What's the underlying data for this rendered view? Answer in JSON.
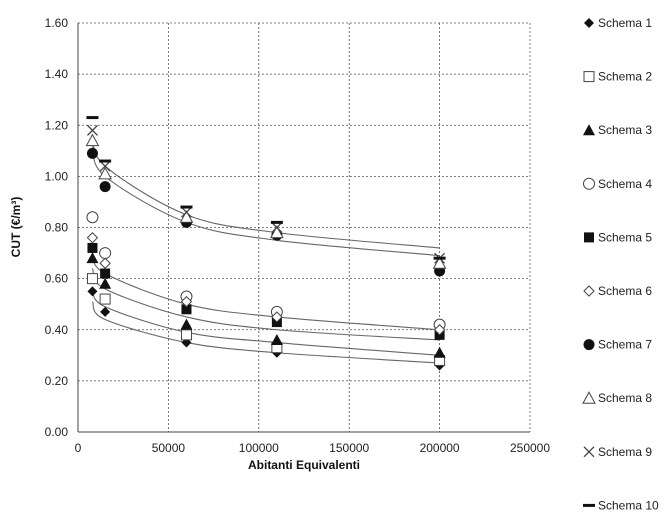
{
  "chart_data": {
    "type": "scatter",
    "xlabel": "Abitanti Equivalenti",
    "ylabel": "CUT (€/m³)",
    "xlim": [
      0,
      250000
    ],
    "ylim": [
      0,
      1.6
    ],
    "x_ticks": [
      "0",
      "50000",
      "100000",
      "150000",
      "200000",
      "250000"
    ],
    "y_ticks": [
      "0.00",
      "0.20",
      "0.40",
      "0.60",
      "0.80",
      "1.00",
      "1.20",
      "1.40",
      "1.60"
    ],
    "grid": "dashed",
    "legend_position": "right",
    "x": [
      8000,
      15000,
      60000,
      110000,
      200000
    ],
    "series": [
      {
        "name": "Schema 1",
        "marker": "diamond-filled",
        "values": [
          0.55,
          0.47,
          0.35,
          0.31,
          0.26
        ]
      },
      {
        "name": "Schema 2",
        "marker": "square-open",
        "values": [
          0.6,
          0.52,
          0.38,
          0.33,
          0.28
        ]
      },
      {
        "name": "Schema 3",
        "marker": "triangle-filled",
        "values": [
          0.68,
          0.58,
          0.42,
          0.36,
          0.31
        ]
      },
      {
        "name": "Schema 4",
        "marker": "circle-open",
        "values": [
          0.84,
          0.7,
          0.53,
          0.47,
          0.42
        ]
      },
      {
        "name": "Schema 5",
        "marker": "square-filled",
        "values": [
          0.72,
          0.62,
          0.48,
          0.43,
          0.38
        ]
      },
      {
        "name": "Schema 6",
        "marker": "diamond-open",
        "values": [
          0.76,
          0.66,
          0.51,
          0.45,
          0.4
        ]
      },
      {
        "name": "Schema 7",
        "marker": "circle-filled",
        "values": [
          1.09,
          0.96,
          0.82,
          0.77,
          0.63
        ]
      },
      {
        "name": "Schema 8",
        "marker": "triangle-open",
        "values": [
          1.14,
          1.01,
          0.84,
          0.78,
          0.66
        ]
      },
      {
        "name": "Schema 9",
        "marker": "x",
        "values": [
          1.18,
          1.04,
          0.86,
          0.8,
          0.68
        ]
      },
      {
        "name": "Schema 10",
        "marker": "dash",
        "values": [
          1.23,
          1.06,
          0.88,
          0.82,
          0.68
        ]
      }
    ],
    "trend_lines": [
      {
        "curve_values": [
          0.51,
          0.44,
          0.35,
          0.31,
          0.27
        ]
      },
      {
        "curve_values": [
          0.56,
          0.49,
          0.39,
          0.35,
          0.3
        ]
      },
      {
        "curve_values": [
          0.64,
          0.56,
          0.45,
          0.4,
          0.36
        ]
      },
      {
        "curve_values": [
          0.7,
          0.62,
          0.5,
          0.45,
          0.4
        ]
      },
      {
        "curve_values": [
          1.12,
          1.0,
          0.82,
          0.75,
          0.69
        ]
      },
      {
        "curve_values": [
          1.16,
          1.04,
          0.85,
          0.78,
          0.72
        ]
      }
    ]
  }
}
